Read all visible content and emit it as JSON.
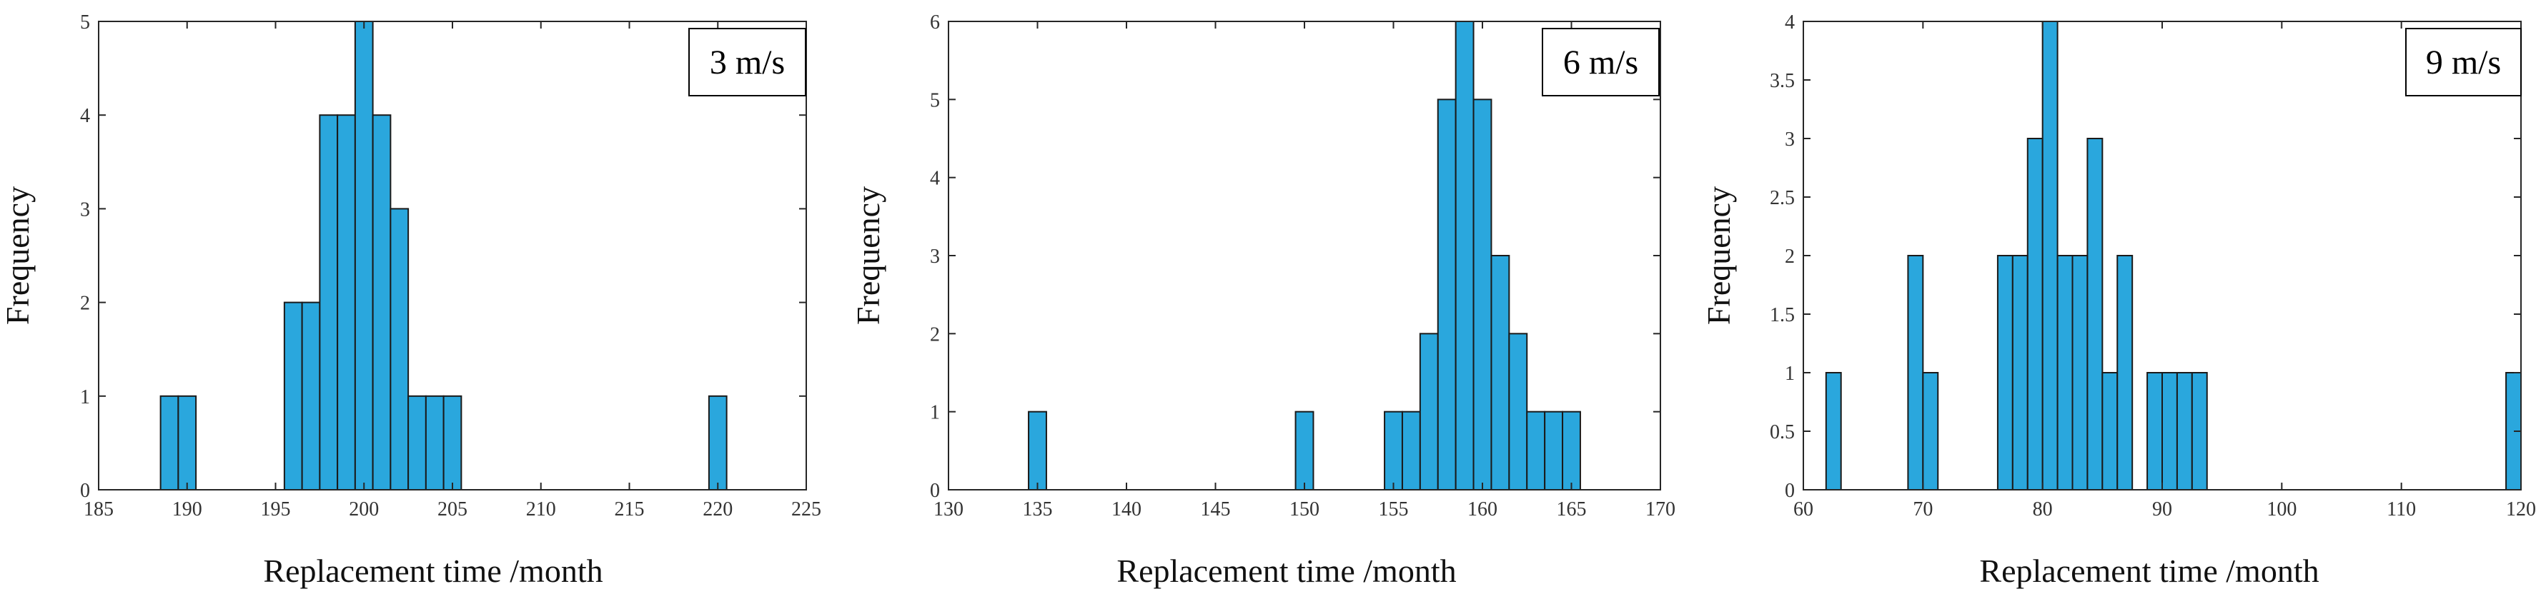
{
  "bar_color": "#2aa7dd",
  "bar_edge_color": "#1a1a1a",
  "axis_color": "#262626",
  "chart_data": [
    {
      "type": "bar",
      "title": "",
      "legend": "3 m/s",
      "xlabel": "Replacement time /month",
      "ylabel": "Frequency",
      "xlim": [
        185,
        225
      ],
      "ylim": [
        0,
        5
      ],
      "xticks": [
        185,
        190,
        195,
        200,
        205,
        210,
        215,
        220,
        225
      ],
      "yticks": [
        0,
        1,
        2,
        3,
        4,
        5
      ],
      "ytick_labels": [
        "0",
        "1",
        "2",
        "3",
        "4",
        "5"
      ],
      "bin_width": 1,
      "bins": [
        {
          "start": 188.5,
          "count": 1
        },
        {
          "start": 189.5,
          "count": 1
        },
        {
          "start": 195.5,
          "count": 2
        },
        {
          "start": 196.5,
          "count": 2
        },
        {
          "start": 197.5,
          "count": 4
        },
        {
          "start": 198.5,
          "count": 4
        },
        {
          "start": 199.5,
          "count": 5
        },
        {
          "start": 200.5,
          "count": 4
        },
        {
          "start": 201.5,
          "count": 3
        },
        {
          "start": 202.5,
          "count": 1
        },
        {
          "start": 203.5,
          "count": 1
        },
        {
          "start": 204.5,
          "count": 1
        },
        {
          "start": 219.5,
          "count": 1
        }
      ]
    },
    {
      "type": "bar",
      "title": "",
      "legend": "6 m/s",
      "xlabel": "Replacement time /month",
      "ylabel": "Frequency",
      "xlim": [
        130,
        170
      ],
      "ylim": [
        0,
        6
      ],
      "xticks": [
        130,
        135,
        140,
        145,
        150,
        155,
        160,
        165,
        170
      ],
      "yticks": [
        0,
        1,
        2,
        3,
        4,
        5,
        6
      ],
      "ytick_labels": [
        "0",
        "1",
        "2",
        "3",
        "4",
        "5",
        "6"
      ],
      "bin_width": 1,
      "bins": [
        {
          "start": 134.5,
          "count": 1
        },
        {
          "start": 149.5,
          "count": 1
        },
        {
          "start": 154.5,
          "count": 1
        },
        {
          "start": 155.5,
          "count": 1
        },
        {
          "start": 156.5,
          "count": 2
        },
        {
          "start": 157.5,
          "count": 5
        },
        {
          "start": 158.5,
          "count": 6
        },
        {
          "start": 159.5,
          "count": 5
        },
        {
          "start": 160.5,
          "count": 3
        },
        {
          "start": 161.5,
          "count": 2
        },
        {
          "start": 162.5,
          "count": 1
        },
        {
          "start": 163.5,
          "count": 1
        },
        {
          "start": 164.5,
          "count": 1
        }
      ]
    },
    {
      "type": "bar",
      "title": "",
      "legend": "9 m/s",
      "xlabel": "Replacement time /month",
      "ylabel": "Frequency",
      "xlim": [
        60,
        120
      ],
      "ylim": [
        0,
        4
      ],
      "xticks": [
        60,
        70,
        80,
        90,
        100,
        110,
        120
      ],
      "yticks": [
        0,
        0.5,
        1,
        1.5,
        2,
        2.5,
        3,
        3.5,
        4
      ],
      "ytick_labels": [
        "0",
        "0.5",
        "1",
        "1.5",
        "2",
        "2.5",
        "3",
        "3.5",
        "4"
      ],
      "bin_width": 1.25,
      "bins": [
        {
          "start": 61.9,
          "count": 1
        },
        {
          "start": 68.75,
          "count": 2
        },
        {
          "start": 70.0,
          "count": 1
        },
        {
          "start": 76.25,
          "count": 2
        },
        {
          "start": 77.5,
          "count": 2
        },
        {
          "start": 78.75,
          "count": 3
        },
        {
          "start": 80.0,
          "count": 4
        },
        {
          "start": 81.25,
          "count": 2
        },
        {
          "start": 82.5,
          "count": 2
        },
        {
          "start": 83.75,
          "count": 3
        },
        {
          "start": 85.0,
          "count": 1
        },
        {
          "start": 86.25,
          "count": 2
        },
        {
          "start": 88.75,
          "count": 1
        },
        {
          "start": 90.0,
          "count": 1
        },
        {
          "start": 91.25,
          "count": 1
        },
        {
          "start": 92.5,
          "count": 1
        },
        {
          "start": 118.75,
          "count": 1
        }
      ]
    }
  ]
}
